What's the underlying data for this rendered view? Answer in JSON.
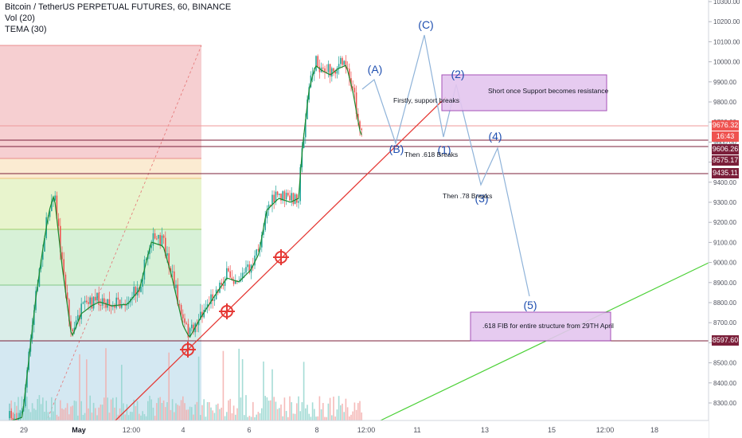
{
  "header": {
    "title": "Bitcoin / TetherUS PERPETUAL FUTURES, 60, BINANCE",
    "vol": "Vol (20)",
    "tema": "TEMA (30)"
  },
  "chart_data": {
    "type": "candlestick",
    "y_axis_ticks": [
      "10300.00",
      "10200.00",
      "10100.00",
      "10000.00",
      "9900.00",
      "9800.00",
      "9700.00",
      "9600.00",
      "9500.00",
      "9400.00",
      "9300.00",
      "9200.00",
      "9100.00",
      "9000.00",
      "8900.00",
      "8800.00",
      "8700.00",
      "8600.00",
      "8500.00",
      "8400.00",
      "8300.00"
    ],
    "x_axis_ticks": [
      "29",
      "May",
      "12:00",
      "4",
      "6",
      "8",
      "12:00",
      "11",
      "13",
      "15",
      "12:00",
      "18"
    ],
    "price_tags": [
      {
        "text": "9676.32",
        "color": "#ef5350"
      },
      {
        "text": "16:43",
        "color": "#ef5350"
      },
      {
        "text": "9606.26",
        "color": "#7b1f3a"
      },
      {
        "text": "9575.17",
        "color": "#7b1f3a"
      },
      {
        "text": "9435.11",
        "color": "#7b1f3a"
      },
      {
        "text": "8597.60",
        "color": "#7b1f3a"
      }
    ],
    "wave_labels": [
      "(A)",
      "(B)",
      "(C)",
      "(1)",
      "(2)",
      "(3)",
      "(4)",
      "(5)"
    ],
    "annotations": [
      "Firstly, support breaks",
      "Then .618 Breaks",
      "Then .78 Breaks",
      "Short once Support becomes resistance",
      ".618 FIB for entire structure from 29TH April"
    ],
    "fib_zone_colors": [
      "#f4c7c9",
      "#fbe9cd",
      "#d9f0c2",
      "#d3efd3",
      "#cfe6f1"
    ]
  }
}
